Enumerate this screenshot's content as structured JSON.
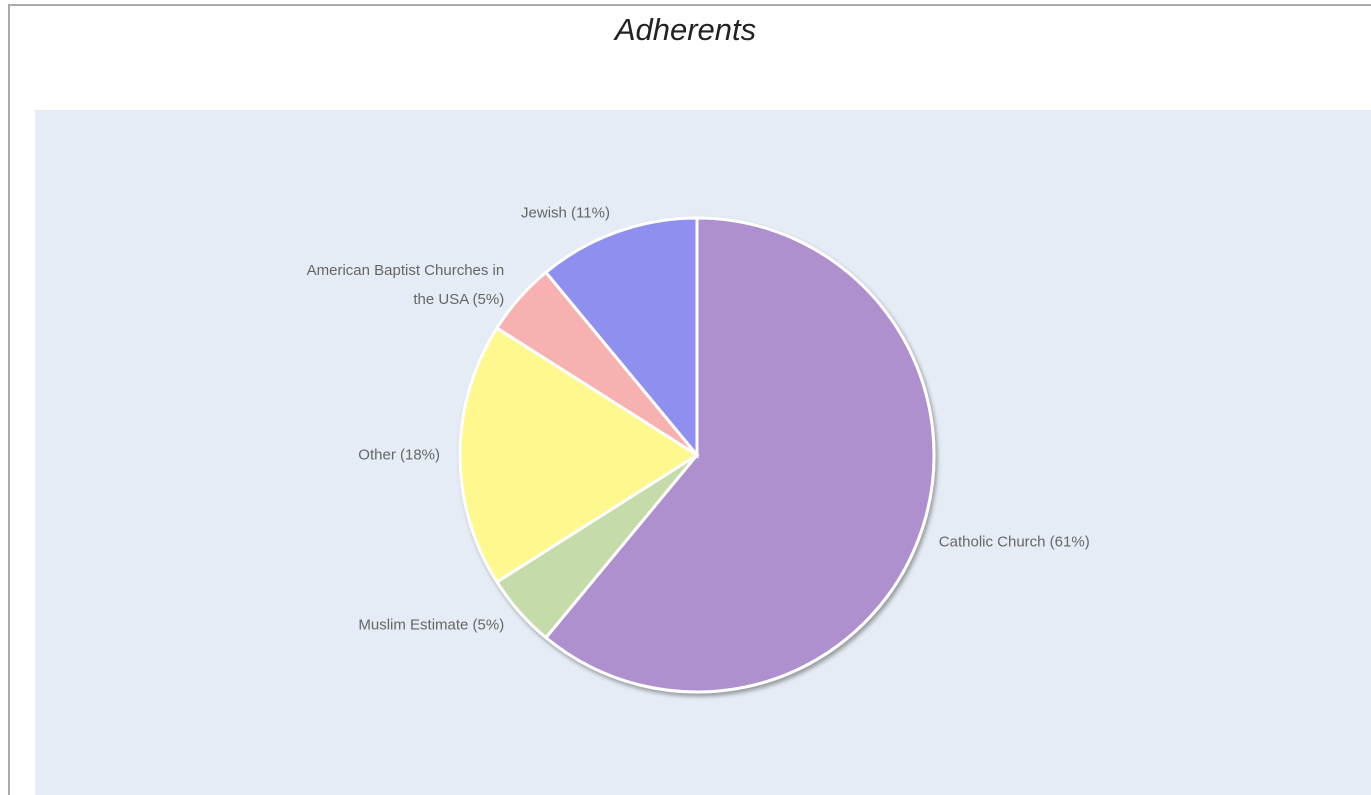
{
  "chart_data": {
    "type": "pie",
    "title": "Adherents",
    "categories": [
      "Catholic Church (61%)",
      "Muslim Estimate (5%)",
      "Other (18%)",
      "American Baptist Churches in the USA (5%)",
      "Jewish (11%)"
    ],
    "values": [
      61,
      5,
      18,
      5,
      11
    ],
    "colors": [
      "#ae90ce",
      "#c5dba9",
      "#fff88e",
      "#f7b1b1",
      "#8f8ff0"
    ]
  }
}
